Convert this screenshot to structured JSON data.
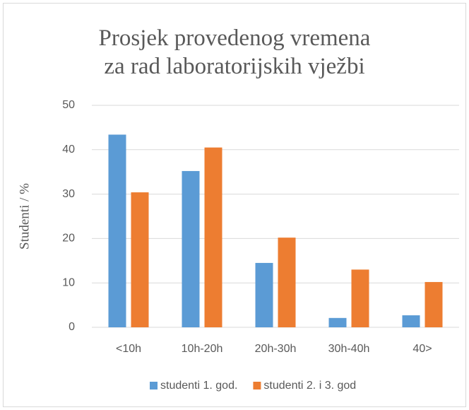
{
  "chart_data": {
    "type": "bar",
    "title": "Prosjek provedenog vremena za rad laboratorijskih vježbi",
    "y_label": "Studenti / %",
    "categories": [
      "<10h",
      "10h-20h",
      "20h-30h",
      "30h-40h",
      "40>"
    ],
    "series": [
      {
        "name": "studenti 1. god.",
        "color": "#5b9bd5",
        "values": [
          43.4,
          35.2,
          14.5,
          2.1,
          2.7
        ]
      },
      {
        "name": "studenti 2. i 3. god",
        "color": "#ed7d31",
        "values": [
          30.4,
          40.5,
          20.2,
          13.0,
          10.2
        ]
      }
    ],
    "ylim": [
      0,
      50
    ],
    "yticks": [
      0,
      10,
      20,
      30,
      40,
      50
    ],
    "grid": true,
    "legend": "bottom"
  }
}
